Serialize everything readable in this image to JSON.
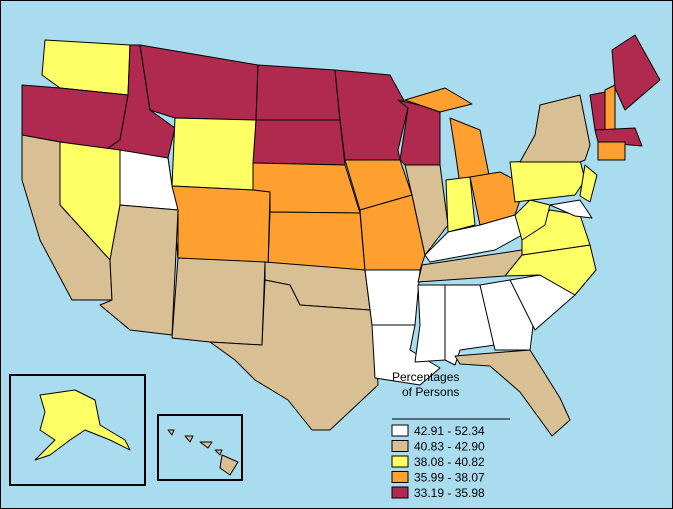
{
  "legend": {
    "title": [
      "Percentages",
      "of Persons"
    ],
    "items": [
      {
        "label": "42.91 - 52.34",
        "color": "#ffffff"
      },
      {
        "label": "40.83 - 42.90",
        "color": "#d9bf94"
      },
      {
        "label": "38.08 - 40.82",
        "color": "#ffff66"
      },
      {
        "label": "35.99 - 38.07",
        "color": "#ffa030"
      },
      {
        "label": "33.19 - 35.98",
        "color": "#b02a50"
      }
    ]
  }
}
